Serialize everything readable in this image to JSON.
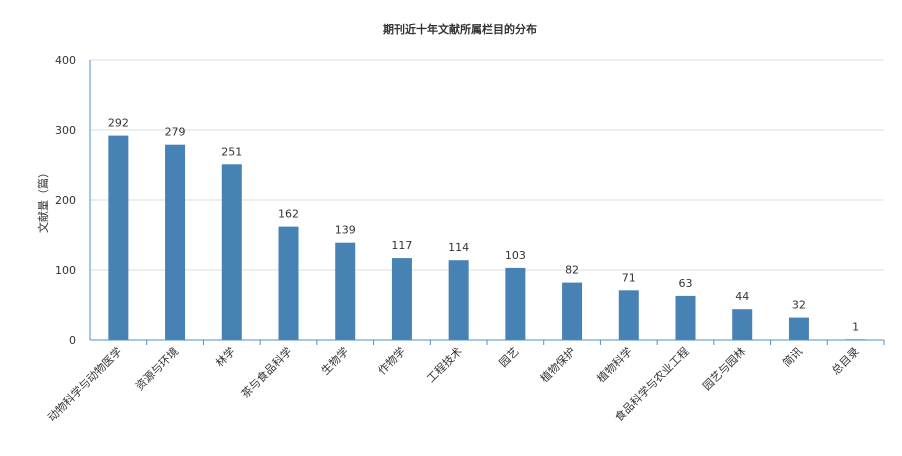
{
  "chart_data": {
    "type": "bar",
    "title": "期刊近十年文献所属栏目的分布",
    "xlabel": "",
    "ylabel": "文献量（篇）",
    "ylim": [
      0,
      400
    ],
    "yticks": [
      0,
      100,
      200,
      300,
      400
    ],
    "grid": true,
    "legend": "none",
    "categories": [
      "动物科学与动物医学",
      "资源与环境",
      "林学",
      "茶与食品科学",
      "生物学",
      "作物学",
      "工程技术",
      "园艺",
      "植物保护",
      "植物科学",
      "食品科学与农业工程",
      "园艺与园林",
      "简讯",
      "总目录"
    ],
    "values": [
      292,
      279,
      251,
      162,
      139,
      117,
      114,
      103,
      82,
      71,
      63,
      44,
      32,
      1
    ],
    "colors": {
      "bar": "#4682b4",
      "axis": "#4f8fc4",
      "grid": "#dddddd"
    }
  }
}
